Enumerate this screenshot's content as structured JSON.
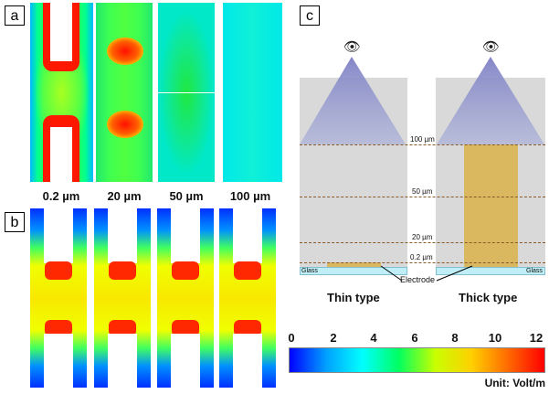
{
  "panels": {
    "a": "a",
    "b": "b",
    "c": "c"
  },
  "distances": [
    "0.2 µm",
    "20 µm",
    "50 µm",
    "100 µm"
  ],
  "diagram": {
    "levels": [
      "100 µm",
      "50 µm",
      "20 µm",
      "0.2 µm"
    ],
    "glass_label": "Glass",
    "electrode_label": "Electrode",
    "thin_type": "Thin type",
    "thick_type": "Thick type",
    "eye_glyph": "👁",
    "colors": {
      "gray_region": "#d9d9d9",
      "cone": "#8f92c8",
      "thick_electrode": "#d9b860",
      "thin_electrode": "#d9b860",
      "glass": "#bfeef6",
      "dash": "#8b5a2b"
    }
  },
  "colorbar": {
    "ticks": [
      "0",
      "2",
      "4",
      "6",
      "8",
      "10",
      "12"
    ],
    "unit": "Unit: Volt/m",
    "colors": [
      "#0000ff",
      "#00a0ff",
      "#00ffff",
      "#00ff60",
      "#c8ff00",
      "#ffd000",
      "#ff6a00",
      "#ff0000"
    ]
  }
}
